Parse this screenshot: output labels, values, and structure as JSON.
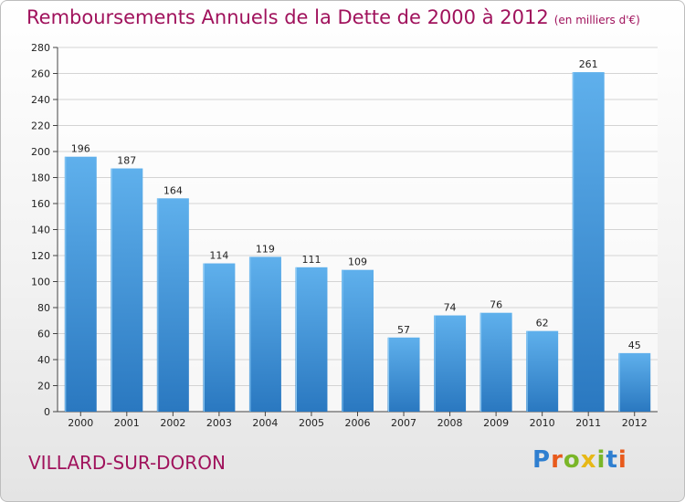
{
  "chart_data": {
    "type": "bar",
    "title": "Remboursements Annuels de la Dette de 2000 à 2012",
    "subtitle": "(en milliers d'€)",
    "categories": [
      "2000",
      "2001",
      "2002",
      "2003",
      "2004",
      "2005",
      "2006",
      "2007",
      "2008",
      "2009",
      "2010",
      "2011",
      "2012"
    ],
    "values": [
      196,
      187,
      164,
      114,
      119,
      111,
      109,
      57,
      74,
      76,
      62,
      261,
      45
    ],
    "ylim": [
      0,
      280
    ],
    "yticks": [
      0,
      20,
      40,
      60,
      80,
      100,
      120,
      140,
      160,
      180,
      200,
      220,
      240,
      260,
      280
    ],
    "grid": true,
    "bar_color": "#3a8fd6"
  },
  "footer": {
    "city": "VILLARD-SUR-DORON",
    "logo": "Proxiti"
  },
  "colors": {
    "title": "#a0125c",
    "logo_letters": [
      "#2f7fd0",
      "#e85a1c",
      "#7ab628",
      "#e7b816",
      "#7ab628",
      "#2f7fd0",
      "#e85a1c"
    ]
  }
}
